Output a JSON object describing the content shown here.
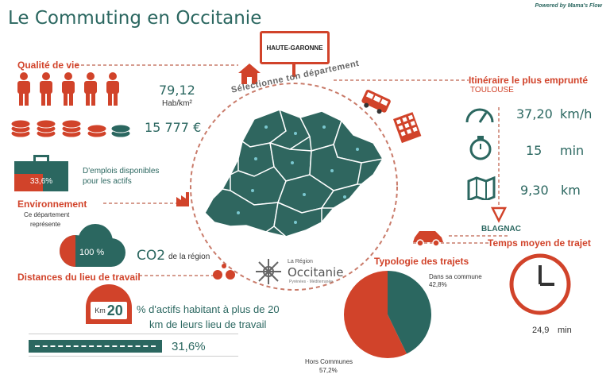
{
  "header": {
    "title": "Le Commuting en Occitanie",
    "powered_by": "Powered by Mama's Flow"
  },
  "colors": {
    "teal": "#2b6760",
    "orange": "#d1432a"
  },
  "department_select": {
    "value": "HAUTE-GARONNE",
    "arc_label": "Sélectionne ton département"
  },
  "quality": {
    "heading": "Qualité de vie",
    "density_value": "79,12",
    "density_unit": "Hab/km²",
    "income_value": "15 777 €"
  },
  "employment": {
    "percent": "33,6%",
    "label_line1": "D'emplois disponibles",
    "label_line2": "pour les actifs"
  },
  "environment": {
    "heading": "Environnement",
    "desc_line1": "Ce département",
    "desc_line2": "représente",
    "cloud_value": "100 %",
    "co2": "CO2",
    "co2_suffix": "de la région"
  },
  "distances": {
    "heading": "Distances du lieu de travail",
    "km_prefix": "Km",
    "km_value": "20",
    "text_line1": "% d'actifs habitant à plus de 20",
    "text_line2": "km de leurs lieu de travail",
    "percent": "31,6%",
    "percent_fraction": 0.316
  },
  "itinerary": {
    "heading": "Itinéraire le plus emprunté",
    "from": "TOULOUSE",
    "to": "BLAGNAC",
    "speed_value": "37,20",
    "speed_unit": "km/h",
    "time_value": "15",
    "time_unit": "min",
    "distance_value": "9,30",
    "distance_unit": "km"
  },
  "travel_time": {
    "heading": "Temps moyen de trajet",
    "value": "24,9",
    "unit": "min"
  },
  "trip_types": {
    "heading": "Typologie des trajets",
    "in_commune_label": "Dans sa commune",
    "in_commune_percent": "42,8%",
    "out_commune_label": "Hors Communes",
    "out_commune_percent": "57,2%",
    "in_commune_fraction": 0.428
  },
  "region_logo": {
    "line1": "La Région",
    "line2": "Occitanie",
    "line3": "Pyrénées · Méditerranée"
  }
}
